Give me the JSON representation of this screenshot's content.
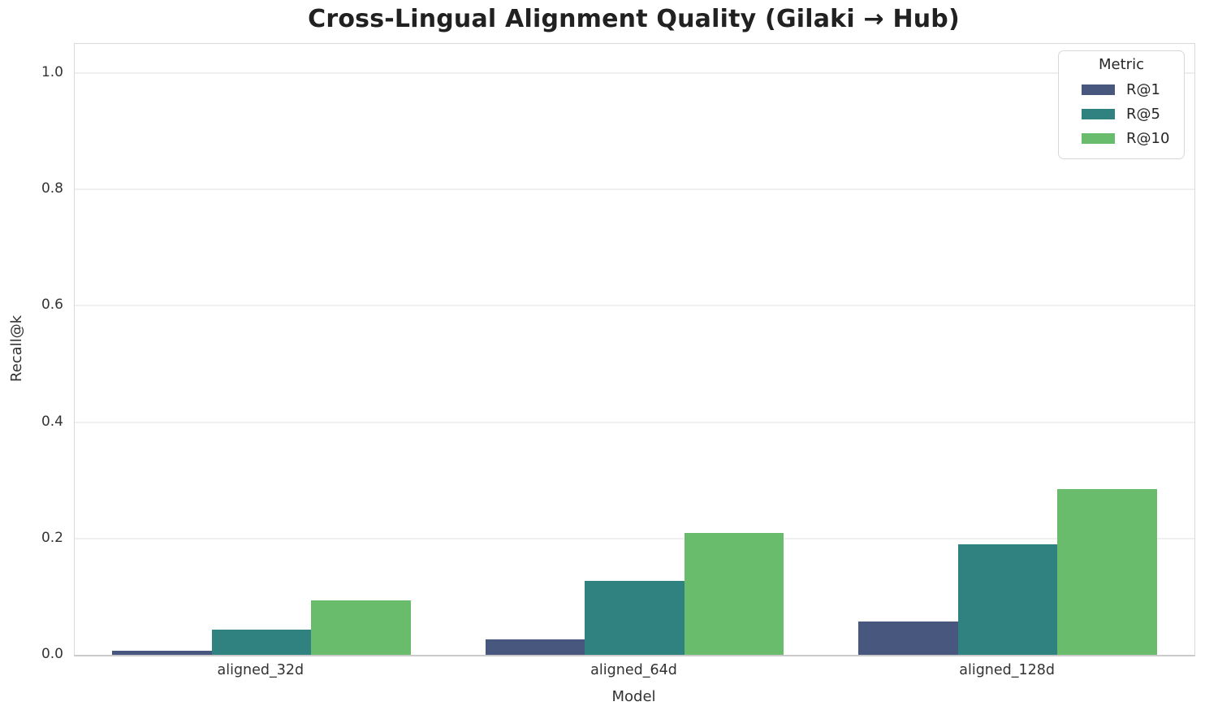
{
  "title": "Cross-Lingual Alignment Quality (Gilaki → Hub)",
  "chart_data": {
    "type": "bar",
    "title": "Cross-Lingual Alignment Quality (Gilaki → Hub)",
    "categories": [
      "aligned_32d",
      "aligned_64d",
      "aligned_128d"
    ],
    "series": [
      {
        "name": "R@1",
        "color": "#47577e",
        "values": [
          0.007,
          0.026,
          0.057
        ]
      },
      {
        "name": "R@5",
        "color": "#2f8280",
        "values": [
          0.044,
          0.127,
          0.19
        ]
      },
      {
        "name": "R@10",
        "color": "#69bc6b",
        "values": [
          0.094,
          0.21,
          0.285
        ]
      }
    ],
    "xlabel": "Model",
    "ylabel": "Recall@k",
    "ylim": [
      0,
      1.05
    ],
    "yticks": [
      0.0,
      0.2,
      0.4,
      0.6,
      0.8,
      1.0
    ],
    "ytick_labels": [
      "0.0",
      "0.2",
      "0.4",
      "0.6",
      "0.8",
      "1.0"
    ],
    "grid": "horizontal",
    "legend_title": "Metric",
    "legend_position": "upper right",
    "background": "#ffffff"
  }
}
